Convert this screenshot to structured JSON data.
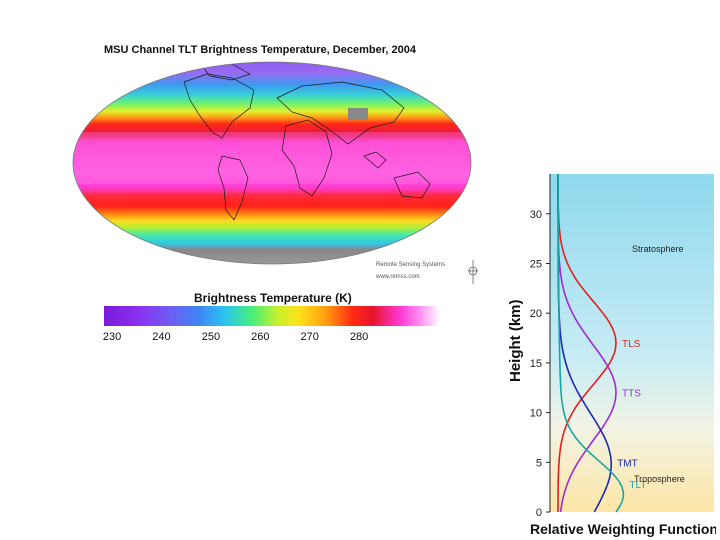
{
  "map": {
    "title": "MSU Channel TLT Brightness Temperature, December, 2004",
    "credit_line1": "Remote Sensing Systems",
    "credit_line2": "www.remss.com"
  },
  "colorbar": {
    "title": "Brightness Temperature (K)",
    "ticks": [
      "230",
      "240",
      "250",
      "260",
      "270",
      "280"
    ],
    "tick_values": [
      230,
      240,
      250,
      260,
      270,
      280
    ],
    "range": [
      228,
      296
    ]
  },
  "weighting_diagram": {
    "ylabel": "Height (km)",
    "xlabel": "Relative Weighting Function",
    "yticks": [
      0,
      5,
      10,
      15,
      20,
      25,
      30
    ],
    "ylim": [
      0,
      34
    ],
    "region_labels": {
      "stratosphere": "Stratosphere",
      "troposphere": "Troposphere"
    },
    "channels": [
      {
        "name": "TLS",
        "color": "#e0201e",
        "peak_km": 17
      },
      {
        "name": "TTS",
        "color": "#a02ad2",
        "peak_km": 12
      },
      {
        "name": "TMT",
        "color": "#1a2ab4",
        "peak_km": 5
      },
      {
        "name": "TLT",
        "color": "#18a4a4",
        "peak_km": 2
      }
    ]
  }
}
